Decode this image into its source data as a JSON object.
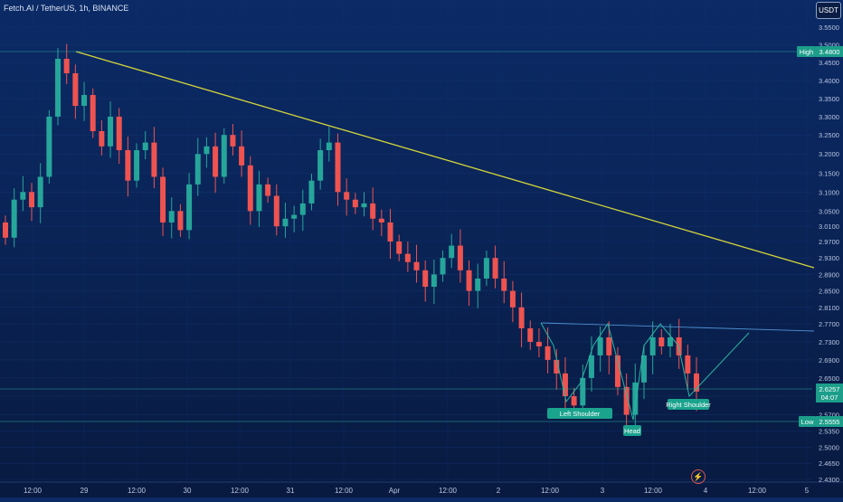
{
  "header": {
    "title": "Fetch.AI / TetherUS, 1h, BINANCE",
    "currency_button": "USDT"
  },
  "chart_data": {
    "type": "candlestick",
    "title": "Fetch.AI / TetherUS, 1h, BINANCE",
    "currency": "USDT",
    "ylim": [
      2.41,
      3.56
    ],
    "y_ticks": [
      "3.5500",
      "3.5000",
      "3.4500",
      "3.4000",
      "3.3500",
      "3.3000",
      "3.2500",
      "3.2000",
      "3.1500",
      "3.1000",
      "3.0500",
      "3.0100",
      "2.9700",
      "2.9300",
      "2.8900",
      "2.8500",
      "2.8100",
      "2.7700",
      "2.7300",
      "2.6900",
      "2.6500",
      "2.6100",
      "2.5700",
      "2.5350",
      "2.5000",
      "2.4650",
      "2.4300"
    ],
    "x_ticks": [
      "12:00",
      "29",
      "12:00",
      "30",
      "12:00",
      "31",
      "12:00",
      "Apr",
      "12:00",
      "2",
      "12:00",
      "3",
      "12:00",
      "4",
      "12:00",
      "5"
    ],
    "markers": {
      "high": {
        "label": "High",
        "value": "3.4800"
      },
      "current": {
        "value": "2.6257",
        "countdown": "04:07"
      },
      "low": {
        "label": "Low",
        "value": "2.5555"
      }
    },
    "annotations": [
      "Left Shoulder",
      "Head",
      "Right Shoulder"
    ],
    "candle_colors": {
      "up": "#26a69a",
      "down": "#ef5350"
    },
    "line_colors": {
      "trendline": "#d4d43a",
      "pattern": "#2bb6a3",
      "neckline": "#4e8fd1"
    },
    "close_series": [
      2.98,
      3.08,
      3.1,
      3.06,
      3.14,
      3.3,
      3.46,
      3.42,
      3.33,
      3.36,
      3.26,
      3.22,
      3.3,
      3.21,
      3.13,
      3.21,
      3.23,
      3.14,
      3.02,
      3.05,
      3.0,
      3.12,
      3.2,
      3.22,
      3.14,
      3.25,
      3.22,
      3.17,
      3.05,
      3.12,
      3.09,
      3.01,
      3.03,
      3.04,
      3.07,
      3.13,
      3.21,
      3.23,
      3.1,
      3.08,
      3.06,
      3.07,
      3.03,
      3.02,
      2.97,
      2.94,
      2.92,
      2.9,
      2.86,
      2.89,
      2.93,
      2.96,
      2.9,
      2.85,
      2.88,
      2.93,
      2.88,
      2.85,
      2.81,
      2.76,
      2.73,
      2.72,
      2.69,
      2.66,
      2.61,
      2.59,
      2.65,
      2.7,
      2.74,
      2.7,
      2.63,
      2.57,
      2.64,
      2.7,
      2.74,
      2.72,
      2.74,
      2.7,
      2.66,
      2.62
    ]
  }
}
